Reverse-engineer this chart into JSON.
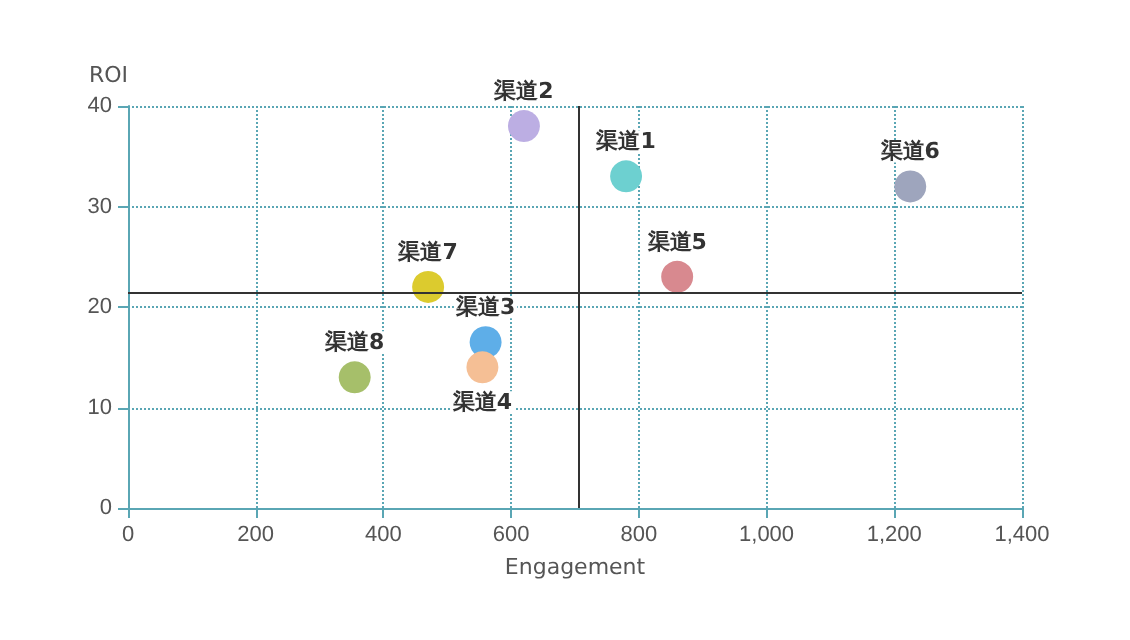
{
  "chart_data": {
    "type": "scatter",
    "xlabel": "Engagement",
    "ylabel": "ROI",
    "xlim": [
      0,
      1400
    ],
    "ylim": [
      0,
      40
    ],
    "xticks": [
      0,
      200,
      400,
      600,
      800,
      {
        "value": 1000,
        "label": "1,000"
      },
      {
        "value": 1200,
        "label": "1,200"
      },
      {
        "value": 1400,
        "label": "1,400"
      }
    ],
    "yticks": [
      0,
      10,
      20,
      30,
      40
    ],
    "grid": true,
    "legend": false,
    "marker": "circle",
    "series": [
      {
        "name": "渠道1",
        "color": "#6dd0d0",
        "x": [
          780
        ],
        "values": [
          33
        ]
      },
      {
        "name": "渠道2",
        "color": "#bcaee3",
        "x": [
          620
        ],
        "values": [
          38
        ]
      },
      {
        "name": "渠道3",
        "color": "#5eaee8",
        "x": [
          560
        ],
        "values": [
          16.5
        ]
      },
      {
        "name": "渠道4",
        "color": "#f5bf95",
        "x": [
          555
        ],
        "values": [
          14
        ]
      },
      {
        "name": "渠道5",
        "color": "#d8898f",
        "x": [
          860
        ],
        "values": [
          23
        ]
      },
      {
        "name": "渠道6",
        "color": "#9ea5bd",
        "x": [
          1225
        ],
        "values": [
          32
        ]
      },
      {
        "name": "渠道7",
        "color": "#dccb2e",
        "x": [
          470
        ],
        "values": [
          22
        ]
      },
      {
        "name": "渠道8",
        "color": "#a6bf6a",
        "x": [
          355
        ],
        "values": [
          13
        ]
      }
    ],
    "ref_lines": [
      {
        "axis": "x",
        "value": 707,
        "label": null
      },
      {
        "axis": "y",
        "value": 21.4,
        "label": null
      }
    ]
  }
}
